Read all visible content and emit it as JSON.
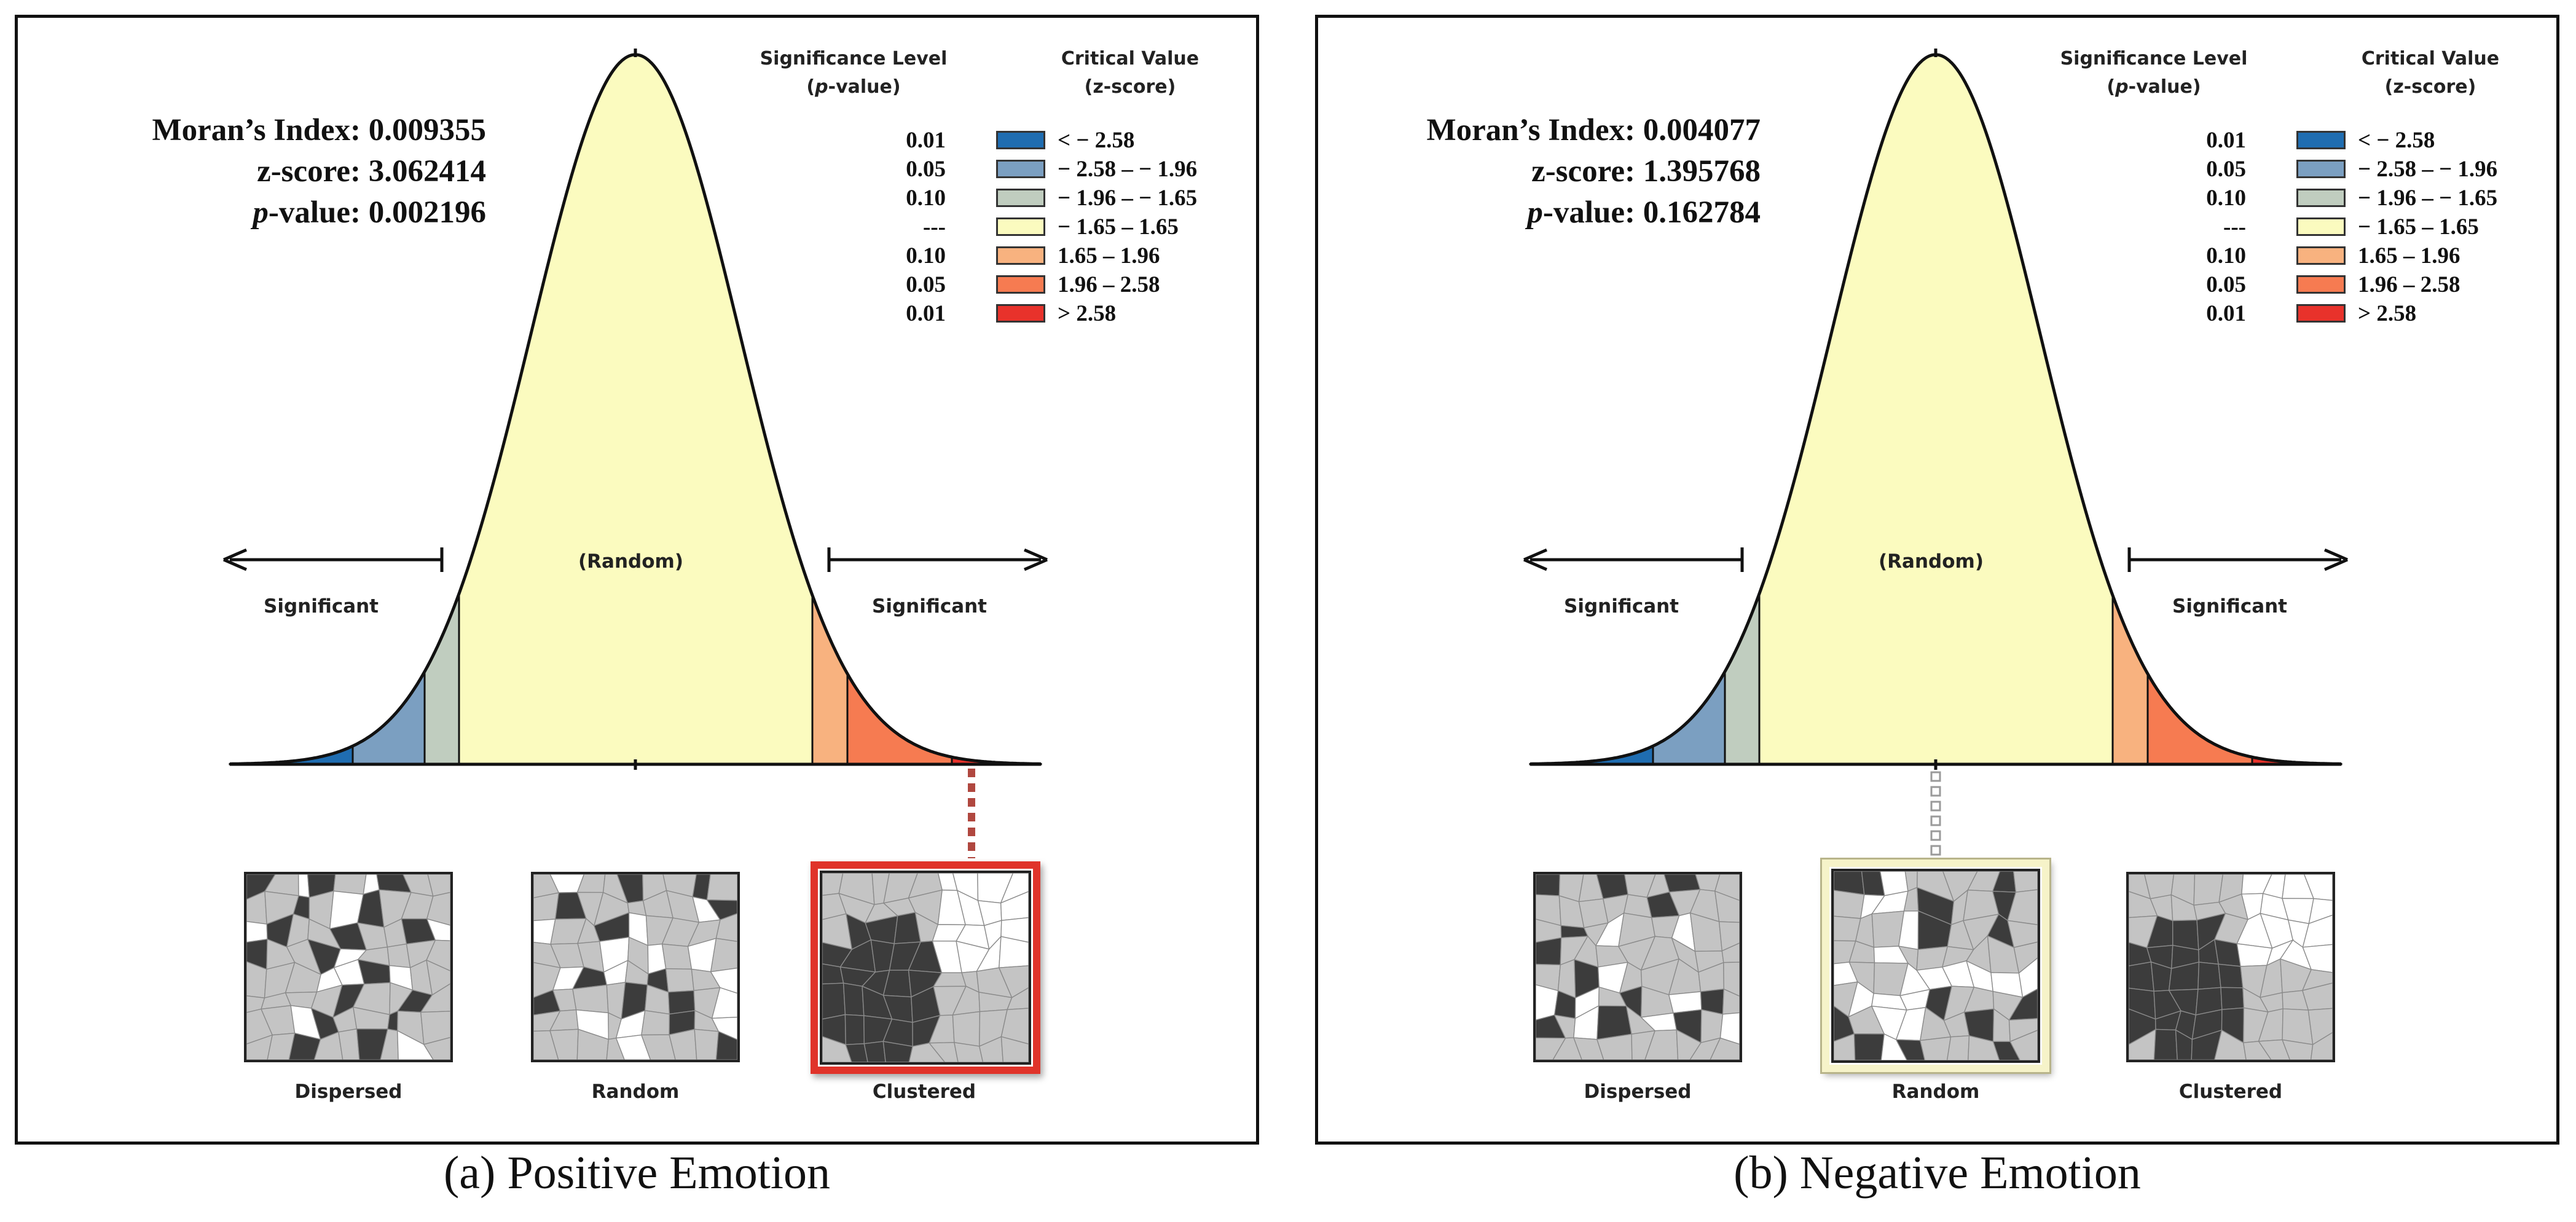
{
  "colors": {
    "curve_fill": "#fbfbbf",
    "bins": [
      "#1f6db1",
      "#7b9fc1",
      "#c0cdbf",
      "#fbfbbf",
      "#f8b27f",
      "#f67b51",
      "#e8322b"
    ],
    "highlight_clustered": "#e0332a",
    "highlight_random": "#f6f3c9",
    "connector_red": "#b0473f",
    "connector_gray": "#9a9a9a"
  },
  "legend": {
    "sig_header_line1": "Significance Level",
    "sig_header_line2_italic": "p",
    "sig_header_line2_rest": "-value)",
    "sig_header_line2_open": "(",
    "crit_header_line1": "Critical Value",
    "crit_header_line2": "(z-score)",
    "rows": [
      {
        "p": "0.01",
        "z": "< − 2.58"
      },
      {
        "p": "0.05",
        "z": "− 2.58 – − 1.96"
      },
      {
        "p": "0.10",
        "z": "− 1.96 – − 1.65"
      },
      {
        "p": "---",
        "z": "− 1.65 – 1.65"
      },
      {
        "p": "0.10",
        "z": "1.65 – 1.96"
      },
      {
        "p": "0.05",
        "z": "1.96 – 2.58"
      },
      {
        "p": "0.01",
        "z": "> 2.58"
      }
    ]
  },
  "labels": {
    "significant": "Significant",
    "random_center": "(Random)",
    "moran_label": "Moran’s Index: ",
    "z_label": "z-score: ",
    "p_label_italic": "p",
    "p_label_rest": "-value: ",
    "pattern_dispersed": "Dispersed",
    "pattern_random": "Random",
    "pattern_clustered": "Clustered"
  },
  "panels": [
    {
      "caption": "(a) Positive Emotion",
      "moran_index": "0.009355",
      "z_score": "3.062414",
      "p_value": "0.002196",
      "z_value": 3.062414,
      "highlighted_pattern": "Clustered"
    },
    {
      "caption": "(b) Negative Emotion",
      "moran_index": "0.004077",
      "z_score": "1.395768",
      "p_value": "0.162784",
      "z_value": 1.395768,
      "highlighted_pattern": "Random"
    }
  ]
}
